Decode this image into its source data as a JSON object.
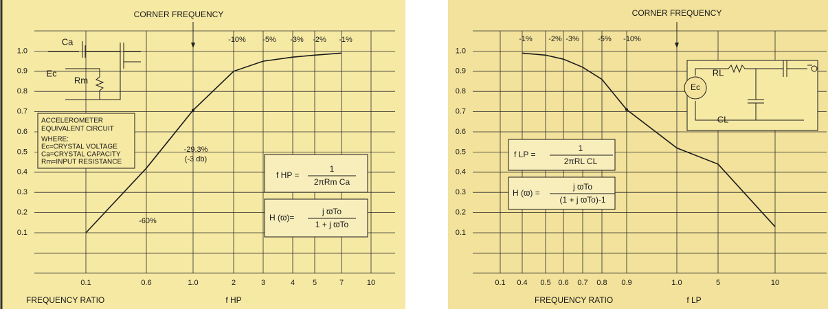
{
  "charts": [
    {
      "chart_data": {
        "type": "line",
        "title": "CORNER FREQUENCY",
        "x_label": "FREQUENCY RATIO",
        "x_unit_label": "f HP",
        "categories": [
          "0.1",
          "0.6",
          "1.0",
          "2",
          "3",
          "4",
          "5",
          "7",
          "10"
        ],
        "values": [
          0.1,
          0.42,
          0.707,
          0.9,
          0.95,
          0.97,
          0.98,
          0.99,
          null
        ],
        "color": "#1a1a1a",
        "ylim": [
          -0.1,
          1.1
        ],
        "yticks": [
          0.1,
          0.2,
          0.3,
          0.4,
          0.5,
          0.6,
          0.7,
          0.8,
          0.9,
          {
            "value": 1,
            "label": "1.0"
          }
        ],
        "grid": true,
        "annotations": [
          "-10%",
          "-5%",
          "-3%",
          "-2%",
          "-1%",
          "-29.3%",
          "(-3 db)",
          "-60%"
        ],
        "inset": [
          "Ca",
          "Ec",
          "Rm",
          "ACCELEROMETER",
          "EQUIVALENT CIRCUIT",
          "WHERE:",
          "Ec=CRYSTAL VOLTAGE",
          "Ca=CRYSTAL CAPACITY",
          "Rm=INPUT RESISTANCE"
        ],
        "formulas": [
          "f HP =",
          "1",
          "2πRm Ca",
          "H (ϖ)=",
          "j ϖTo",
          "1 + j ϖTo"
        ]
      }
    },
    {
      "chart_data": {
        "type": "line",
        "title": "CORNER FREQUENCY",
        "x_label": "FREQUENCY RATIO",
        "x_unit_label": "f LP",
        "categories": [
          "0.1",
          "0.4",
          "0.5",
          "0.6",
          "0.7",
          "0.8",
          "0.9",
          "1.0",
          "5",
          "10"
        ],
        "values": [
          null,
          0.99,
          0.98,
          0.96,
          0.92,
          0.86,
          0.71,
          0.52,
          0.44,
          0.13
        ],
        "color": "#1a1a1a",
        "ylim": [
          -0.1,
          1.1
        ],
        "yticks": [
          0.1,
          0.2,
          0.3,
          0.4,
          0.5,
          0.6,
          0.7,
          0.8,
          0.9,
          {
            "value": 1,
            "label": "1.0"
          }
        ],
        "grid": true,
        "annotations": [
          "-1%",
          "-2%",
          "-3%",
          "-5%",
          "-10%"
        ],
        "inset": [
          "RL",
          "Ec",
          "CL"
        ],
        "formulas": [
          "f LP =",
          "1",
          "2πRL CL",
          "H (ϖ) =",
          "j ϖTo",
          "(1 + j ϖTo)-1"
        ]
      }
    }
  ]
}
